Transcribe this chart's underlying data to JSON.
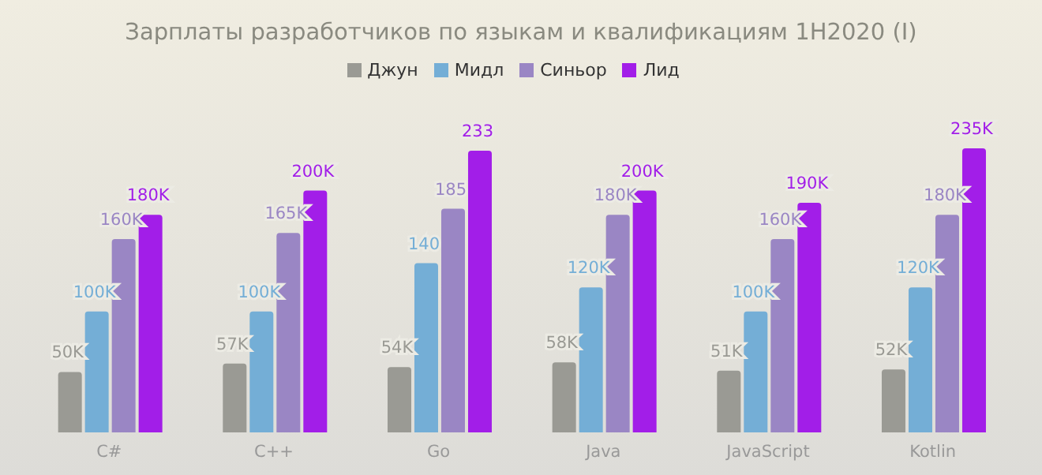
{
  "chart_data": {
    "type": "bar",
    "title": "Зарплаты разработчиков по языкам и квалификациям 1H2020 (I)",
    "categories": [
      "C#",
      "C++",
      "Go",
      "Java",
      "JavaScript",
      "Kotlin"
    ],
    "legend": "top",
    "grid": false,
    "series": [
      {
        "name": "Джун",
        "color": "#9a9a94",
        "values": [
          50,
          57,
          54,
          58,
          51,
          52
        ],
        "value_labels": [
          "50K",
          "57K",
          "54K",
          "58K",
          "51K",
          "52K"
        ]
      },
      {
        "name": "Мидл",
        "color": "#74aed6",
        "values": [
          100,
          100,
          140,
          120,
          100,
          120
        ],
        "value_labels": [
          "100K",
          "100K",
          "140",
          "120K",
          "100K",
          "120K"
        ]
      },
      {
        "name": "Синьор",
        "color": "#9a86c4",
        "values": [
          160,
          165,
          185,
          180,
          160,
          180
        ],
        "value_labels": [
          "160K",
          "165K",
          "185",
          "180K",
          "160K",
          "180K"
        ]
      },
      {
        "name": "Лид",
        "color": "#a21ee8",
        "values": [
          180,
          200,
          233,
          200,
          190,
          235
        ],
        "value_labels": [
          "180K",
          "200K",
          "233",
          "200K",
          "190K",
          "235K"
        ]
      }
    ]
  }
}
